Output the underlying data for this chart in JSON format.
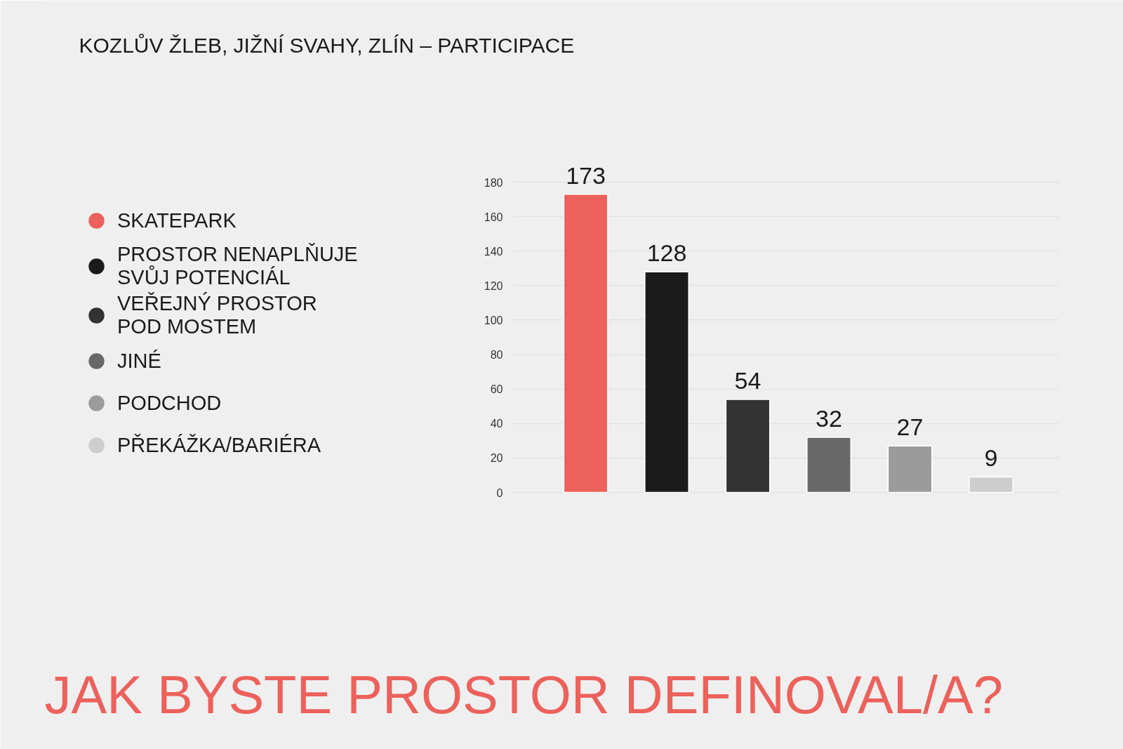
{
  "chart_data": {
    "type": "bar",
    "title": "KOZLŮV ŽLEB, JIŽNÍ SVAHY, ZLÍN – PARTICIPACE",
    "subtitle": "JAK BYSTE PROSTOR DEFINOVAL/A?",
    "categories": [
      null,
      null,
      null,
      null,
      null,
      null
    ],
    "series": [
      {
        "name": "SKATEPARK",
        "color": "#ec615b",
        "values": [
          173,
          null,
          null,
          null,
          null,
          null
        ]
      },
      {
        "name": "PROSTOR NENAPLŇUJE SVŮJ POTENCIÁL",
        "color": "#1b1b1b",
        "values": [
          null,
          128,
          null,
          null,
          null,
          null
        ]
      },
      {
        "name": "VEŘEJNÝ PROSTOR POD MOSTEM",
        "color": "#333333",
        "values": [
          null,
          null,
          54,
          null,
          null,
          null
        ]
      },
      {
        "name": "JINÉ",
        "color": "#686868",
        "values": [
          null,
          null,
          null,
          32,
          null,
          null
        ]
      },
      {
        "name": "PODCHOD",
        "color": "#9b9b9b",
        "values": [
          null,
          null,
          null,
          null,
          27,
          null
        ]
      },
      {
        "name": "PŘEKÁŽKA/BARIÉRA",
        "color": "#cdcdcd",
        "values": [
          null,
          null,
          null,
          null,
          null,
          9
        ]
      }
    ],
    "stacked": true,
    "ylim": [
      0,
      180
    ],
    "yticks": [
      0,
      20,
      40,
      60,
      80,
      100,
      120,
      140,
      160,
      180
    ],
    "grid": "y",
    "legend": "left",
    "tick_labels": "y",
    "data_labels": true
  }
}
